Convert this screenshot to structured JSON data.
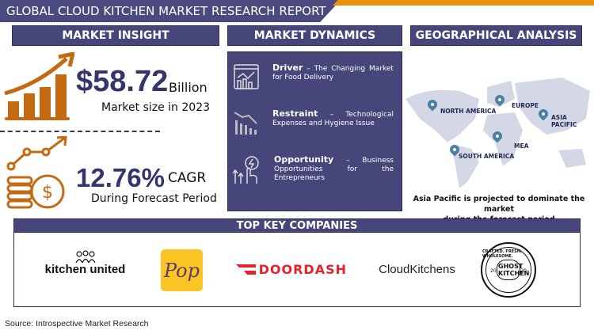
{
  "title": "GLOBAL CLOUD KITCHEN MARKET RESEARCH REPORT",
  "market_insight": {
    "header": "MARKET INSIGHT",
    "size_value": "$58.72",
    "size_unit": "Billion",
    "size_caption": "Market size in 2023",
    "cagr_value": "12.76%",
    "cagr_unit": "CAGR",
    "cagr_caption": "During Forecast Period"
  },
  "market_dynamics": {
    "header": "MARKET DYNAMICS",
    "items": [
      {
        "label": "Driver",
        "dash": "–",
        "text": "The Changing Market for Food Delivery",
        "icon": "analytics-chart-icon"
      },
      {
        "label": "Restraint",
        "dash": "–",
        "text": "Technological Expenses and Hygiene Issue",
        "icon": "declining-chart-icon"
      },
      {
        "label": "Opportunity",
        "dash": "–",
        "text": "Business Opportunities for the Entrepreneurs",
        "icon": "touch-growth-icon"
      }
    ]
  },
  "geographical": {
    "header": "GEOGRAPHICAL ANALYSIS",
    "regions": [
      "NORTH AMERICA",
      "EUROPE",
      "ASIA PACIFIC",
      "MEA",
      "SOUTH AMERICA"
    ],
    "caption_line1": "Asia Pacific is projected to dominate the market",
    "caption_line2": "during the forecast period"
  },
  "companies": {
    "header": "TOP KEY COMPANIES",
    "items": [
      "kitchen united",
      "Pop",
      "DOORDASH",
      "CloudKitchens",
      "GHOST KITCHEN"
    ],
    "ghost_ring": "CRAFTED. FRESH. WHOLESOME.",
    "ghost_year_left": "20",
    "ghost_year_right": "20"
  },
  "source": "Source: Introspective Market Research",
  "colors": {
    "navy": "#46467a",
    "orange": "#c46a12",
    "accent": "#e8920e",
    "doordash": "#e8202a",
    "pop": "#fbc524"
  }
}
